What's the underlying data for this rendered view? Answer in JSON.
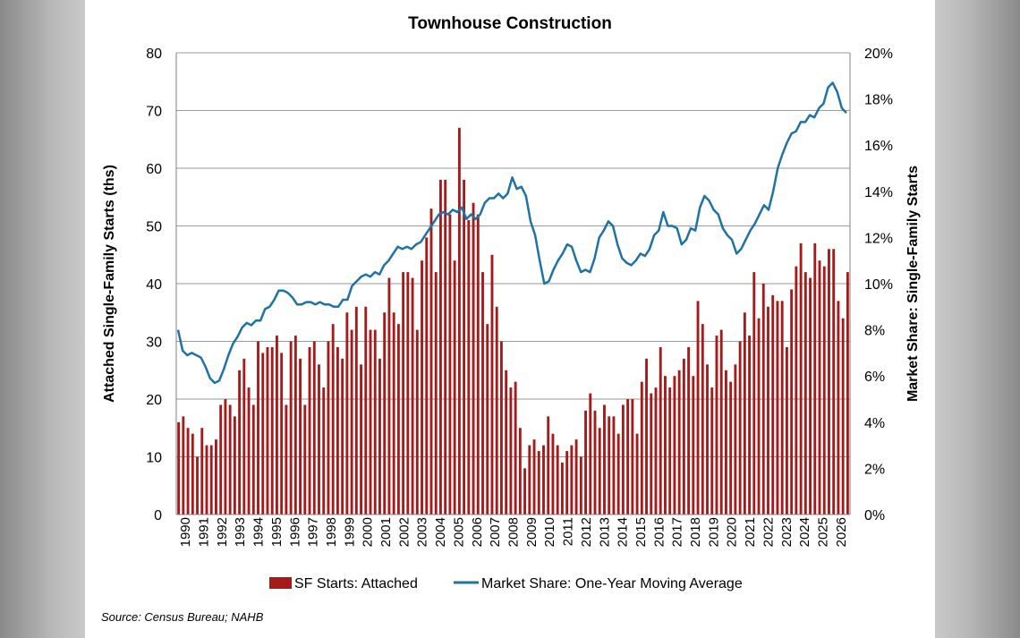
{
  "chart_data": {
    "type": "bar",
    "title": "Townhouse Construction",
    "ylabel_left": "Attached Single-Family Starts (ths)",
    "ylabel_right": "Market Share: Single-Family Starts",
    "ylim_left": [
      0,
      80
    ],
    "ylim_right": [
      0,
      0.2
    ],
    "yticks_left": [
      "0",
      "10",
      "20",
      "30",
      "40",
      "50",
      "60",
      "70",
      "80"
    ],
    "yticks_right": [
      "0%",
      "2%",
      "4%",
      "6%",
      "8%",
      "10%",
      "12%",
      "14%",
      "16%",
      "18%",
      "20%"
    ],
    "x_labels": [
      "1990",
      "1991",
      "1992",
      "1993",
      "1994",
      "1995",
      "1996",
      "1997",
      "1998",
      "1999",
      "2000",
      "2001",
      "2002",
      "2003",
      "2004",
      "2005",
      "2006",
      "2007",
      "2008",
      "2009",
      "2010",
      "2011",
      "2012",
      "2013",
      "2014",
      "2015",
      "2016",
      "2017",
      "2018",
      "2019",
      "2020",
      "2021",
      "2022",
      "2023",
      "2024",
      "2025",
      "2026"
    ],
    "grid": true,
    "legend_position": "bottom",
    "source": "Source: Census Bureau; NAHB",
    "colors": {
      "bars": "#a51b1b",
      "line": "#1f72a6",
      "grid": "#9a9a9a"
    },
    "series": [
      {
        "name": "SF Starts: Attached",
        "type": "bar",
        "axis": "left",
        "values": [
          16,
          17,
          15,
          14,
          10,
          15,
          12,
          12,
          13,
          19,
          20,
          19,
          17,
          25,
          27,
          22,
          19,
          30,
          28,
          29,
          29,
          31,
          28,
          19,
          30,
          31,
          27,
          19,
          29,
          30,
          26,
          22,
          30,
          33,
          29,
          27,
          35,
          32,
          36,
          26,
          36,
          32,
          32,
          27,
          35,
          41,
          35,
          33,
          42,
          42,
          41,
          32,
          44,
          48,
          53,
          42,
          58,
          58,
          52,
          44,
          67,
          58,
          51,
          54,
          52,
          42,
          33,
          45,
          36,
          30,
          25,
          22,
          23,
          15,
          8,
          12,
          13,
          11,
          12,
          17,
          14,
          12,
          9,
          11,
          12,
          13,
          10,
          18,
          21,
          18,
          15,
          19,
          17,
          17,
          14,
          19,
          20,
          20,
          14,
          23,
          27,
          21,
          22,
          29,
          24,
          22,
          24,
          25,
          27,
          29,
          24,
          37,
          33,
          26,
          22,
          31,
          32,
          25,
          23,
          26,
          30,
          35,
          31,
          42,
          34,
          40,
          36,
          38,
          37,
          37,
          29,
          39,
          43,
          47,
          42,
          41,
          47,
          44,
          43,
          46,
          46,
          37,
          34,
          42
        ]
      },
      {
        "name": "Market Share: One-Year Moving Average",
        "type": "line",
        "axis": "right",
        "values": [
          0.08,
          0.071,
          0.069,
          0.07,
          0.069,
          0.068,
          0.064,
          0.059,
          0.057,
          0.058,
          0.063,
          0.069,
          0.074,
          0.077,
          0.081,
          0.083,
          0.082,
          0.084,
          0.084,
          0.089,
          0.09,
          0.093,
          0.097,
          0.097,
          0.096,
          0.094,
          0.091,
          0.091,
          0.092,
          0.092,
          0.091,
          0.092,
          0.091,
          0.091,
          0.09,
          0.09,
          0.093,
          0.093,
          0.099,
          0.101,
          0.103,
          0.104,
          0.103,
          0.105,
          0.104,
          0.108,
          0.11,
          0.113,
          0.116,
          0.115,
          0.116,
          0.115,
          0.117,
          0.118,
          0.121,
          0.124,
          0.127,
          0.13,
          0.131,
          0.13,
          0.132,
          0.131,
          0.133,
          0.128,
          0.13,
          0.128,
          0.13,
          0.135,
          0.137,
          0.137,
          0.139,
          0.137,
          0.139,
          0.146,
          0.141,
          0.142,
          0.138,
          0.127,
          0.121,
          0.11,
          0.1,
          0.101,
          0.106,
          0.11,
          0.113,
          0.117,
          0.116,
          0.11,
          0.105,
          0.106,
          0.105,
          0.111,
          0.12,
          0.123,
          0.127,
          0.125,
          0.117,
          0.111,
          0.109,
          0.108,
          0.11,
          0.113,
          0.112,
          0.115,
          0.121,
          0.123,
          0.131,
          0.125,
          0.125,
          0.124,
          0.117,
          0.119,
          0.124,
          0.123,
          0.133,
          0.138,
          0.136,
          0.132,
          0.13,
          0.124,
          0.121,
          0.119,
          0.113,
          0.115,
          0.119,
          0.123,
          0.126,
          0.13,
          0.134,
          0.132,
          0.14,
          0.15,
          0.156,
          0.161,
          0.165,
          0.166,
          0.17,
          0.17,
          0.173,
          0.172,
          0.176,
          0.178,
          0.185,
          0.187,
          0.183,
          0.176,
          0.174
        ]
      }
    ]
  }
}
